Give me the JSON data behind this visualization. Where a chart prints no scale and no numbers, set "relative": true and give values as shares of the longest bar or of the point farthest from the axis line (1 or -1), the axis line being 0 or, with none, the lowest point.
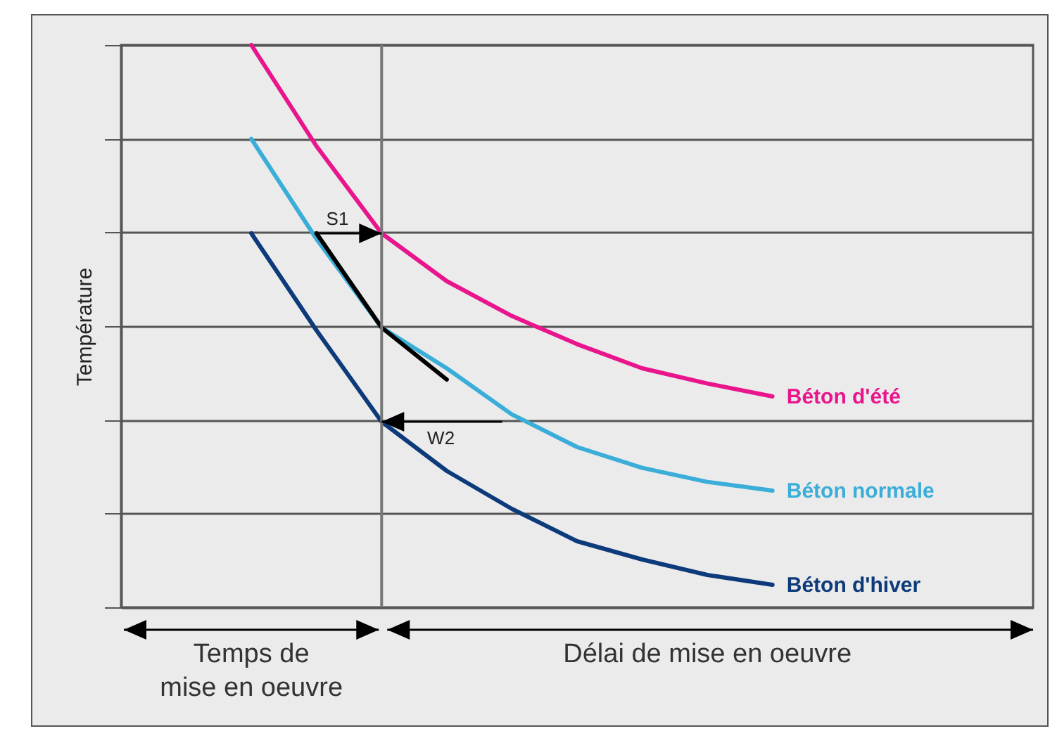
{
  "chart_data": {
    "type": "line",
    "relative": true,
    "ylabel": "Température",
    "grid": "y",
    "categories": [
      null,
      null,
      null,
      null,
      null,
      null,
      null,
      null,
      null,
      null,
      null,
      null,
      null,
      null,
      null
    ],
    "series": [
      {
        "name": "Béton d'été",
        "color": "#e8158c",
        "values": [
          null,
          null,
          1.0,
          0.82,
          0.665,
          0.58,
          0.518,
          0.468,
          0.425,
          0.398,
          0.375,
          null,
          null,
          null,
          null
        ]
      },
      {
        "name": "Béton normale",
        "color": "#3aaed8",
        "values": [
          null,
          null,
          0.833,
          0.655,
          0.4975,
          0.425,
          0.343,
          0.285,
          0.248,
          0.223,
          0.2075,
          null,
          null,
          null,
          null
        ]
      },
      {
        "name": "Béton d'hiver",
        "color": "#0d3a7a",
        "values": [
          null,
          null,
          0.665,
          0.4925,
          0.33,
          0.2425,
          0.175,
          0.1175,
          0.085,
          0.0575,
          0.04,
          null,
          null,
          null,
          null
        ]
      },
      {
        "color": "#000000",
        "values": [
          null,
          null,
          null,
          0.665,
          0.4975,
          0.405,
          null,
          null,
          null,
          null,
          null,
          null,
          null,
          null,
          null
        ]
      }
    ],
    "annotations": [
      "S1",
      "W2",
      "Temps de\nmise en oeuvre",
      "Délai de mise en oeuvre"
    ]
  }
}
